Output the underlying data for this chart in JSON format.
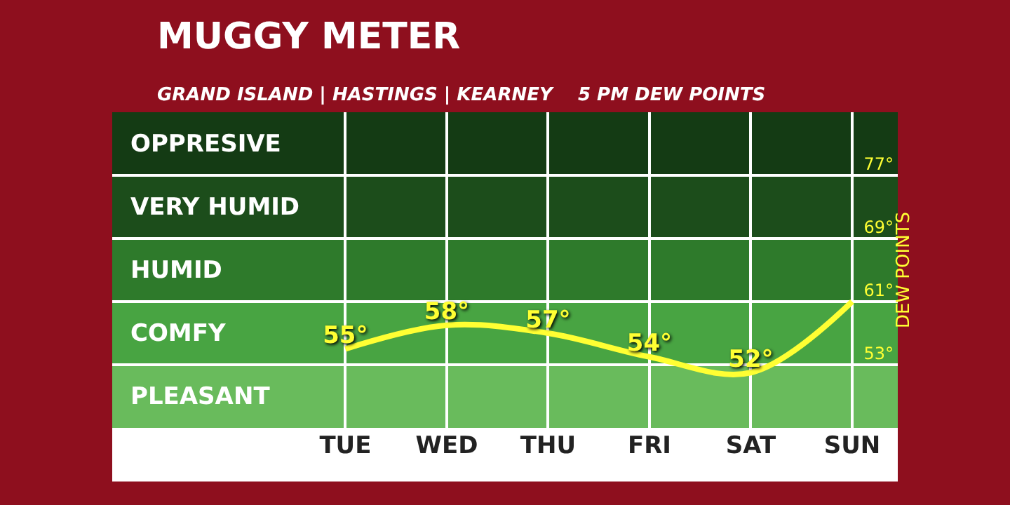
{
  "chart_data": {
    "type": "line",
    "title": "MUGGY METER",
    "subtitle": "GRAND ISLAND | HASTINGS | KEARNEY    5 PM DEW POINTS",
    "categories": [
      "TUE",
      "WED",
      "THU",
      "FRI",
      "SAT",
      "SUN"
    ],
    "series": [
      {
        "color": "#ffff33",
        "values": [
          55,
          58,
          57,
          54,
          52,
          61
        ],
        "value_labels": [
          "55°",
          "58°",
          "57°",
          "54°",
          "52°",
          null
        ]
      }
    ],
    "ylabel": "DEW POINTS",
    "ylim": [
      45,
      85
    ],
    "yticks": [
      {
        "value": 53,
        "label": "53°"
      },
      {
        "value": 61,
        "label": "61°"
      },
      {
        "value": 69,
        "label": "69°"
      },
      {
        "value": 77,
        "label": "77°"
      }
    ],
    "bands": [
      {
        "axis": "y",
        "from": 45,
        "to": 53,
        "label": "PLEASANT",
        "color": "#69bb5c"
      },
      {
        "axis": "y",
        "from": 53,
        "to": 61,
        "label": "COMFY",
        "color": "#48a442"
      },
      {
        "axis": "y",
        "from": 61,
        "to": 69,
        "label": "HUMID",
        "color": "#2e7a2b"
      },
      {
        "axis": "y",
        "from": 69,
        "to": 77,
        "label": "VERY HUMID",
        "color": "#1c4d1b"
      },
      {
        "axis": "y",
        "from": 77,
        "to": 85,
        "label": "OPPRESIVE",
        "color": "#143b14"
      }
    ],
    "grid": true,
    "marker": "none",
    "line_style": "solid"
  }
}
